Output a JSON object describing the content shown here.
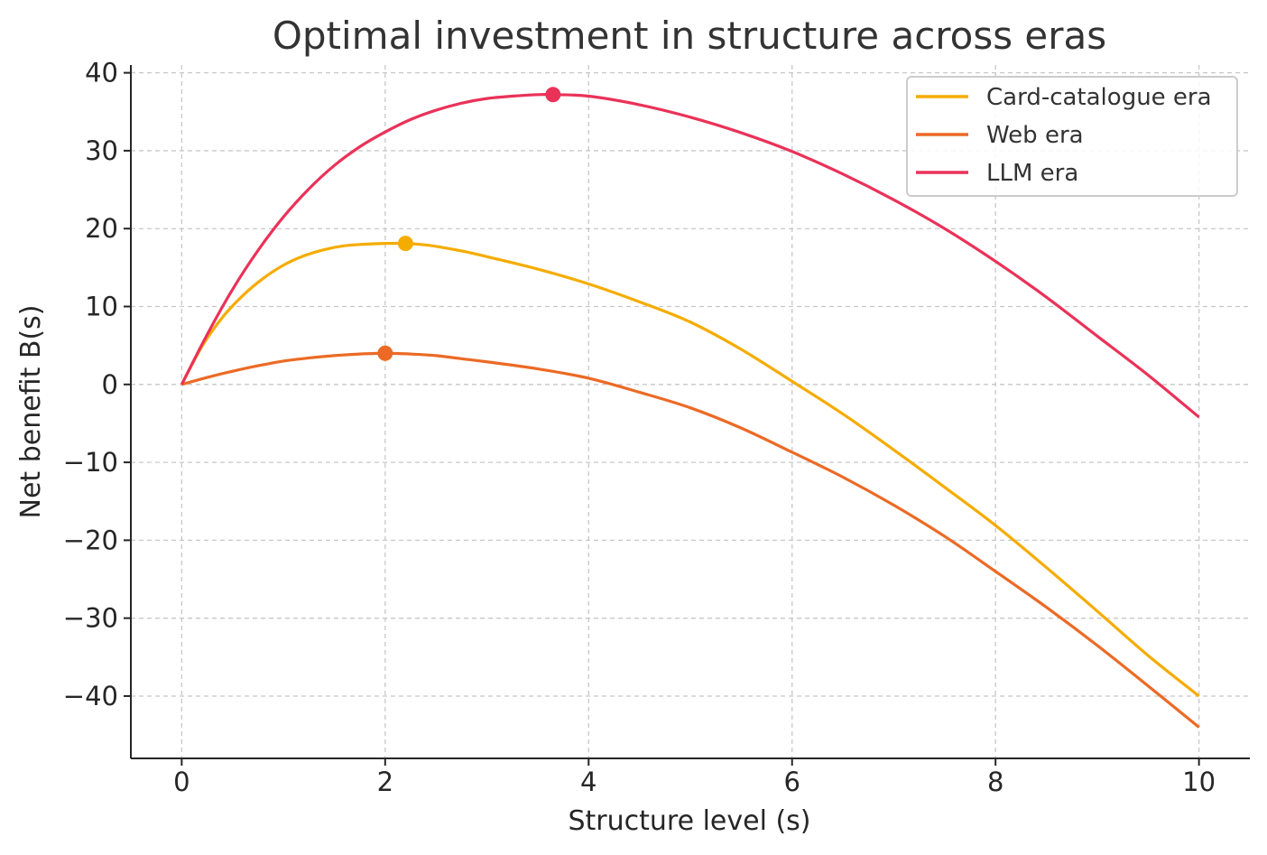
{
  "chart_data": {
    "type": "line",
    "title": "Optimal investment in structure across eras",
    "xlabel": "Structure level (s)",
    "ylabel": "Net benefit B(s)",
    "xlim": [
      -0.5,
      10.5
    ],
    "ylim": [
      -48,
      41
    ],
    "xticks": [
      0,
      2,
      4,
      6,
      8,
      10
    ],
    "xtick_labels": [
      "0",
      "2",
      "4",
      "6",
      "8",
      "10"
    ],
    "yticks": [
      -40,
      -30,
      -20,
      -10,
      0,
      10,
      20,
      30,
      40
    ],
    "ytick_labels": [
      "−40",
      "−30",
      "−20",
      "−10",
      "0",
      "10",
      "20",
      "30",
      "40"
    ],
    "grid": true,
    "legend_position": "top-right",
    "series": [
      {
        "name": "Card-catalogue era",
        "color": "#f5ac00",
        "x": [
          0,
          0.2,
          0.4,
          0.6,
          0.8,
          1,
          1.2,
          1.4,
          1.6,
          1.8,
          2,
          2.2,
          2.4,
          2.6,
          2.8,
          3,
          3.5,
          4,
          4.5,
          5,
          5.5,
          6,
          6.5,
          7,
          7.5,
          8,
          8.5,
          9,
          9.5,
          10
        ],
        "y": [
          0,
          4.9,
          8.6,
          11.4,
          13.6,
          15.3,
          16.5,
          17.3,
          17.8,
          18.0,
          18.1,
          18.1,
          17.9,
          17.5,
          17.0,
          16.4,
          14.8,
          12.9,
          10.6,
          8.0,
          4.5,
          0.4,
          -3.8,
          -8.4,
          -13.2,
          -18.1,
          -23.5,
          -29.1,
          -34.8,
          -40.0
        ],
        "optimum": {
          "x": 2.2,
          "y": 18.1
        }
      },
      {
        "name": "Web era",
        "color": "#ec6a25",
        "x": [
          0,
          0.25,
          0.5,
          0.75,
          1,
          1.25,
          1.5,
          1.75,
          2,
          2.25,
          2.5,
          2.75,
          3,
          3.5,
          4,
          4.5,
          5,
          5.5,
          6,
          6.5,
          7,
          7.5,
          8,
          8.5,
          9,
          9.5,
          10
        ],
        "y": [
          0,
          0.9,
          1.7,
          2.4,
          3.0,
          3.4,
          3.7,
          3.9,
          4.0,
          3.9,
          3.7,
          3.3,
          2.9,
          2.0,
          0.8,
          -1.0,
          -3.0,
          -5.6,
          -8.7,
          -11.9,
          -15.5,
          -19.5,
          -24.0,
          -28.6,
          -33.5,
          -38.7,
          -44.0
        ],
        "optimum": {
          "x": 2.0,
          "y": 4.0
        }
      },
      {
        "name": "LLM era",
        "color": "#ea3259",
        "x": [
          0,
          0.25,
          0.5,
          0.75,
          1,
          1.25,
          1.5,
          1.75,
          2,
          2.25,
          2.5,
          2.75,
          3,
          3.25,
          3.5,
          3.65,
          4,
          4.5,
          5,
          5.5,
          6,
          6.5,
          7,
          7.5,
          8,
          8.5,
          9,
          9.5,
          10
        ],
        "y": [
          0,
          6.4,
          12.2,
          17.2,
          21.5,
          25.1,
          28.1,
          30.5,
          32.4,
          34.0,
          35.2,
          36.1,
          36.7,
          37.0,
          37.2,
          37.2,
          37.0,
          35.9,
          34.3,
          32.3,
          29.9,
          27.0,
          23.7,
          20.0,
          15.8,
          11.2,
          6.2,
          1.2,
          -4.2
        ],
        "optimum": {
          "x": 3.65,
          "y": 37.2
        }
      }
    ]
  }
}
